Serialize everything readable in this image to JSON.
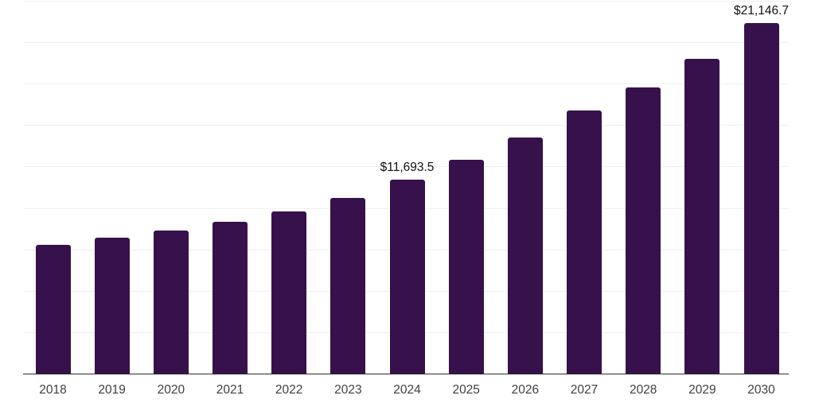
{
  "chart_data": {
    "type": "bar",
    "title": "",
    "xlabel": "",
    "ylabel": "",
    "categories": [
      "2018",
      "2019",
      "2020",
      "2021",
      "2022",
      "2023",
      "2024",
      "2025",
      "2026",
      "2027",
      "2028",
      "2029",
      "2030"
    ],
    "values": [
      7790,
      8220,
      8655,
      9180,
      9805,
      10620,
      11693.5,
      12890,
      14270,
      15865,
      17290,
      18985,
      21146.7
    ],
    "labeled_points": [
      {
        "category": "2024",
        "label": "$11,693.5"
      },
      {
        "category": "2030",
        "label": "$21,146.7"
      }
    ],
    "ylim": [
      0,
      22500
    ],
    "gridline_step": 2500,
    "grid": true,
    "legend_position": "none",
    "y_axis_tick_labels": "none",
    "colors": {
      "bar": "#36114B",
      "gridline": "#F0F0F0",
      "axis_line": "#2B2B2B",
      "tick_label": "#404040",
      "value_label": "#111111",
      "background": "#FFFFFF"
    }
  }
}
